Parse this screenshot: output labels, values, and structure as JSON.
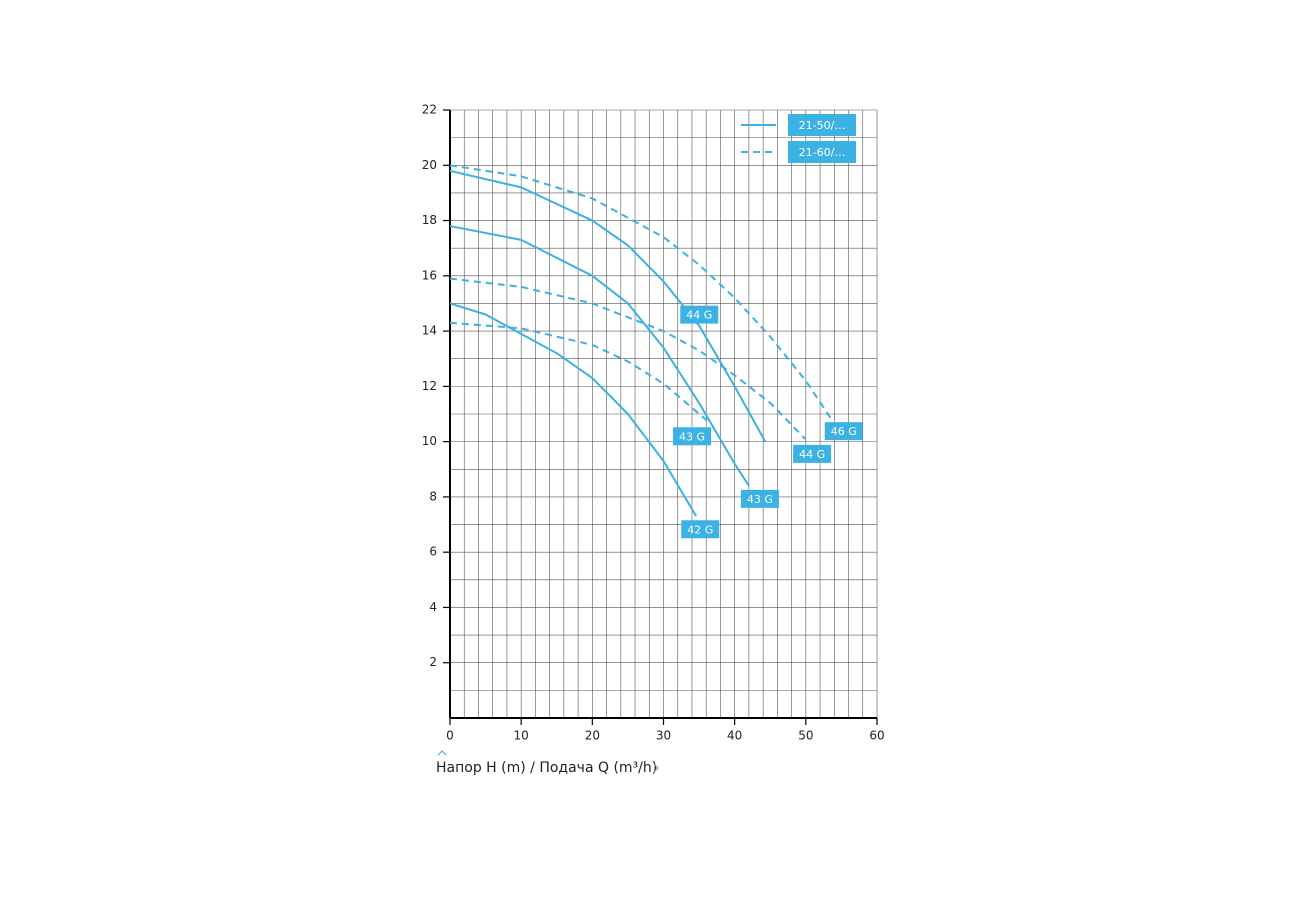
{
  "chart_data": {
    "type": "line",
    "xlim": [
      0,
      60
    ],
    "xticks": [
      0,
      10,
      20,
      30,
      40,
      50,
      60
    ],
    "ylim": [
      0,
      22
    ],
    "yticks": [
      2,
      4,
      6,
      8,
      10,
      12,
      14,
      16,
      18,
      20,
      22
    ],
    "xgrid": [
      2,
      4,
      6,
      8,
      10,
      12,
      14,
      16,
      18,
      20,
      22,
      24,
      26,
      28,
      30,
      32,
      34,
      36,
      38,
      40,
      42,
      44,
      46,
      48,
      50,
      52,
      54,
      56,
      58,
      60
    ],
    "ygrid": [
      1,
      2,
      3,
      4,
      5,
      6,
      7,
      8,
      9,
      10,
      11,
      12,
      13,
      14,
      15,
      16,
      17,
      18,
      19,
      20,
      21,
      22
    ],
    "color": "#3bb1e4",
    "legend": [
      {
        "label": "21-50/…",
        "dashed": false
      },
      {
        "label": "21-60/…",
        "dashed": true
      }
    ],
    "series": [
      {
        "name": "42 G",
        "dashed": false,
        "x": [
          0,
          5,
          10,
          15,
          20,
          25,
          30,
          34.6
        ],
        "values": [
          15.0,
          14.6,
          13.9,
          13.2,
          12.3,
          11.0,
          9.3,
          7.3
        ]
      },
      {
        "name": "43 G",
        "dashed": false,
        "x": [
          0,
          10,
          20,
          25,
          30,
          35,
          40,
          42
        ],
        "values": [
          17.8,
          17.3,
          16.0,
          15.0,
          13.4,
          11.4,
          9.2,
          8.4
        ]
      },
      {
        "name": "44 G",
        "dashed": false,
        "x": [
          0,
          10,
          20,
          25,
          30,
          35,
          40,
          44.3
        ],
        "values": [
          19.8,
          19.2,
          18.0,
          17.1,
          15.8,
          14.2,
          12.0,
          10.0
        ]
      },
      {
        "name": "43 G",
        "dashed": true,
        "x": [
          0,
          10,
          20,
          25,
          30,
          36.4
        ],
        "values": [
          14.3,
          14.1,
          13.5,
          12.9,
          12.1,
          10.7
        ]
      },
      {
        "name": "44 G",
        "dashed": true,
        "x": [
          0,
          10,
          20,
          30,
          35,
          40,
          45,
          49.9
        ],
        "values": [
          15.9,
          15.6,
          15.0,
          14.0,
          13.3,
          12.4,
          11.4,
          10.1
        ]
      },
      {
        "name": "46 G",
        "dashed": true,
        "x": [
          0,
          10,
          20,
          30,
          35,
          40,
          45,
          50,
          53.5
        ],
        "values": [
          20.0,
          19.6,
          18.8,
          17.4,
          16.4,
          15.2,
          13.8,
          12.2,
          10.85
        ]
      }
    ],
    "footer": "Напор H (m) / Подача Q (m³/h)"
  }
}
